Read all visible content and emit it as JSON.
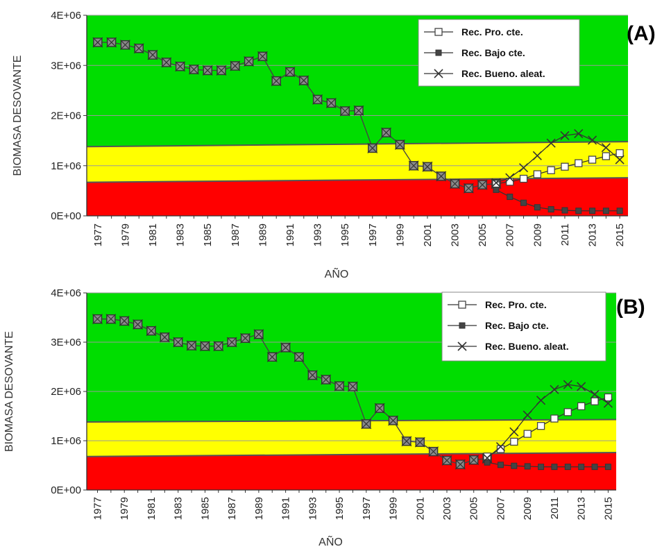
{
  "chart_data": [
    {
      "type": "line",
      "panel_label": "(A)",
      "xlabel": "AÑO",
      "ylabel": "BIOMASA DESOVANTE",
      "ylim": [
        0,
        4000000
      ],
      "y_ticks": [
        "0E+00",
        "1E+06",
        "2E+06",
        "3E+06",
        "4E+06"
      ],
      "x_ticks": [
        "1977",
        "1979",
        "1981",
        "1983",
        "1985",
        "1987",
        "1989",
        "1991",
        "1993",
        "1995",
        "1997",
        "1999",
        "2001",
        "2003",
        "2005",
        "2007",
        "2009",
        "2011",
        "2013",
        "2015"
      ],
      "legend_position": "top-right",
      "zones": [
        {
          "color": "#ff0000",
          "from": [
            0,
            0
          ],
          "to": [
            670000,
            760000
          ]
        },
        {
          "color": "#ffff00",
          "from": [
            670000,
            760000
          ],
          "to": [
            1380000,
            1480000
          ]
        },
        {
          "color": "#00dd00",
          "from": [
            1380000,
            1480000
          ],
          "to": [
            4000000,
            4000000
          ]
        }
      ],
      "historical": {
        "x": [
          1977,
          1978,
          1979,
          1980,
          1981,
          1982,
          1983,
          1984,
          1985,
          1986,
          1987,
          1988,
          1989,
          1990,
          1991,
          1992,
          1993,
          1994,
          1995,
          1996,
          1997,
          1998,
          1999,
          2000,
          2001,
          2002,
          2003,
          2004,
          2005,
          2006
        ],
        "values": [
          3460000,
          3460000,
          3410000,
          3340000,
          3210000,
          3060000,
          2980000,
          2920000,
          2900000,
          2900000,
          2990000,
          3080000,
          3180000,
          2690000,
          2870000,
          2700000,
          2320000,
          2250000,
          2090000,
          2100000,
          1350000,
          1660000,
          1420000,
          1000000,
          980000,
          790000,
          640000,
          550000,
          620000,
          640000
        ]
      },
      "series": [
        {
          "name": "Rec. Pro. cte.",
          "marker": "square-open",
          "x": [
            2006,
            2007,
            2008,
            2009,
            2010,
            2011,
            2012,
            2013,
            2014,
            2015
          ],
          "values": [
            640000,
            680000,
            740000,
            830000,
            910000,
            980000,
            1050000,
            1120000,
            1190000,
            1250000
          ]
        },
        {
          "name": "Rec. Bajo cte.",
          "marker": "square-filled",
          "x": [
            2006,
            2007,
            2008,
            2009,
            2010,
            2011,
            2012,
            2013,
            2014,
            2015
          ],
          "values": [
            520000,
            380000,
            260000,
            170000,
            130000,
            110000,
            100000,
            100000,
            100000,
            100000
          ]
        },
        {
          "name": "Rec. Bueno. aleat.",
          "marker": "x",
          "x": [
            2006,
            2007,
            2008,
            2009,
            2010,
            2011,
            2012,
            2013,
            2014,
            2015
          ],
          "values": [
            660000,
            760000,
            960000,
            1200000,
            1450000,
            1600000,
            1640000,
            1510000,
            1360000,
            1120000
          ]
        }
      ]
    },
    {
      "type": "line",
      "panel_label": "(B)",
      "xlabel": "AÑO",
      "ylabel": "BIOMASA DESOVANTE",
      "ylim": [
        0,
        4000000
      ],
      "y_ticks": [
        "0E+00",
        "1E+06",
        "2E+06",
        "3E+06",
        "4E+06"
      ],
      "x_ticks": [
        "1977",
        "1979",
        "1981",
        "1983",
        "1985",
        "1987",
        "1989",
        "1991",
        "1993",
        "1995",
        "1997",
        "1999",
        "2001",
        "2003",
        "2005",
        "2007",
        "2009",
        "2011",
        "2013",
        "2015"
      ],
      "legend_position": "top-right",
      "zones": [
        {
          "color": "#ff0000",
          "from": [
            0,
            0
          ],
          "to": [
            680000,
            760000
          ]
        },
        {
          "color": "#ffff00",
          "from": [
            680000,
            760000
          ],
          "to": [
            1380000,
            1430000
          ]
        },
        {
          "color": "#00dd00",
          "from": [
            1380000,
            1430000
          ],
          "to": [
            4000000,
            4000000
          ]
        }
      ],
      "historical": {
        "x": [
          1977,
          1978,
          1979,
          1980,
          1981,
          1982,
          1983,
          1984,
          1985,
          1986,
          1987,
          1988,
          1989,
          1990,
          1991,
          1992,
          1993,
          1994,
          1995,
          1996,
          1997,
          1998,
          1999,
          2000,
          2001,
          2002,
          2003,
          2004,
          2005,
          2006
        ],
        "values": [
          3470000,
          3470000,
          3430000,
          3360000,
          3230000,
          3100000,
          3000000,
          2930000,
          2920000,
          2920000,
          3000000,
          3080000,
          3160000,
          2700000,
          2890000,
          2700000,
          2330000,
          2240000,
          2110000,
          2100000,
          1340000,
          1660000,
          1410000,
          990000,
          970000,
          780000,
          600000,
          520000,
          610000,
          640000
        ]
      },
      "series": [
        {
          "name": "Rec. Pro. cte.",
          "marker": "square-open",
          "x": [
            2006,
            2007,
            2008,
            2009,
            2010,
            2011,
            2012,
            2013,
            2014,
            2015
          ],
          "values": [
            680000,
            830000,
            980000,
            1140000,
            1300000,
            1450000,
            1580000,
            1700000,
            1800000,
            1880000
          ]
        },
        {
          "name": "Rec. Bajo cte.",
          "marker": "square-filled",
          "x": [
            2006,
            2007,
            2008,
            2009,
            2010,
            2011,
            2012,
            2013,
            2014,
            2015
          ],
          "values": [
            560000,
            510000,
            490000,
            480000,
            470000,
            470000,
            470000,
            470000,
            470000,
            470000
          ]
        },
        {
          "name": "Rec. Bueno. aleat.",
          "marker": "x",
          "x": [
            2006,
            2007,
            2008,
            2009,
            2010,
            2011,
            2012,
            2013,
            2014,
            2015
          ],
          "values": [
            650000,
            880000,
            1180000,
            1520000,
            1820000,
            2040000,
            2140000,
            2100000,
            1940000,
            1760000
          ]
        }
      ]
    }
  ]
}
